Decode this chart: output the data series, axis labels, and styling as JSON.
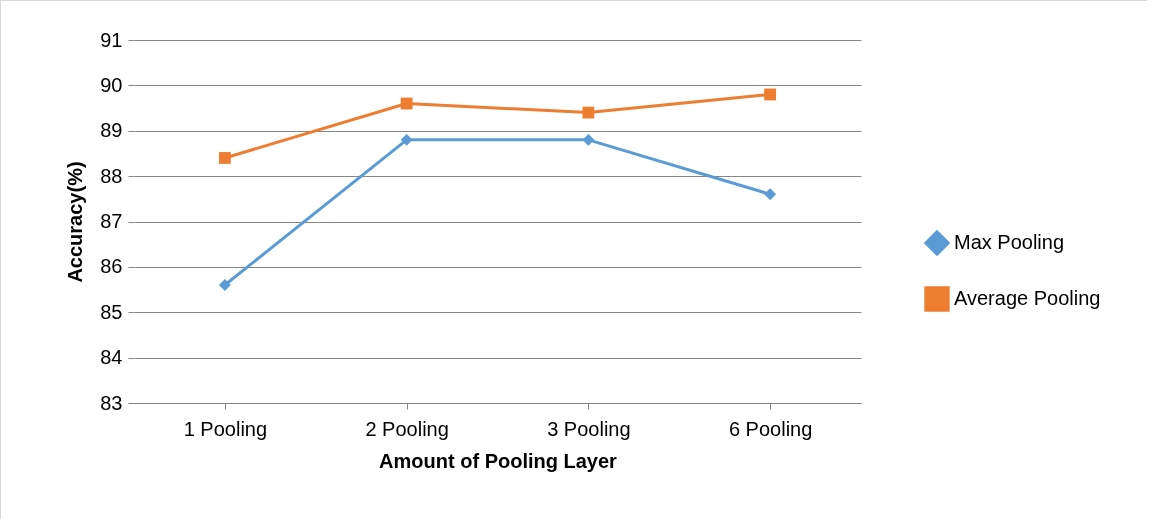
{
  "chart_data": {
    "type": "line",
    "xlabel": "Amount of Pooling Layer",
    "ylabel": "Accuracy(%)",
    "categories": [
      "1 Pooling",
      "2 Pooling",
      "3 Pooling",
      "6 Pooling"
    ],
    "series": [
      {
        "name": "Max Pooling",
        "color": "#5b9bd5",
        "marker": "diamond",
        "values": [
          85.6,
          88.8,
          88.8,
          87.6
        ]
      },
      {
        "name": "Average Pooling",
        "color": "#ed7d31",
        "marker": "square",
        "values": [
          88.4,
          89.6,
          89.4,
          89.8
        ]
      }
    ],
    "ylim": [
      83,
      91
    ],
    "yticks": [
      83,
      84,
      85,
      86,
      87,
      88,
      89,
      90,
      91
    ],
    "grid": "y",
    "legend": "right",
    "line_style": "solid"
  }
}
